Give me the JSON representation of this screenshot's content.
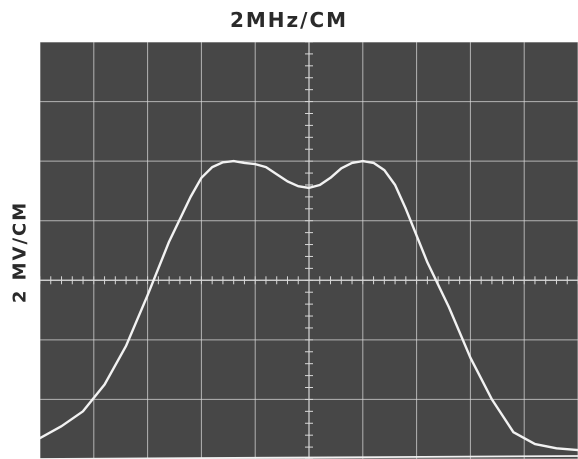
{
  "chart_data": {
    "type": "line",
    "title": "2MHz/CM",
    "xlabel": "",
    "ylabel": "2 MV/CM",
    "xlim": [
      -5,
      5
    ],
    "ylim": [
      -3,
      4
    ],
    "x_divisions": 10,
    "y_divisions": 7,
    "grid": true,
    "colors": {
      "screen": "#474747",
      "grid": "#d8d8d8",
      "trace": "#f2f2f2"
    },
    "series": [
      {
        "x": [
          -5.0,
          -4.6,
          -4.2,
          -3.8,
          -3.4,
          -3.0,
          -2.6,
          -2.2,
          -2.0,
          -1.8,
          -1.6,
          -1.4,
          -1.2,
          -1.0,
          -0.8,
          -0.6,
          -0.4,
          -0.2,
          0.0,
          0.2,
          0.4,
          0.6,
          0.8,
          1.0,
          1.2,
          1.4,
          1.6,
          1.8,
          2.0,
          2.2,
          2.6,
          3.0,
          3.4,
          3.8,
          4.2,
          4.6,
          5.0
        ],
        "y": [
          -2.65,
          -2.45,
          -2.2,
          -1.75,
          -1.1,
          -0.25,
          0.65,
          1.4,
          1.72,
          1.9,
          1.98,
          2.0,
          1.97,
          1.95,
          1.9,
          1.78,
          1.66,
          1.58,
          1.55,
          1.6,
          1.72,
          1.88,
          1.97,
          2.0,
          1.97,
          1.85,
          1.6,
          1.2,
          0.75,
          0.3,
          -0.45,
          -1.3,
          -2.0,
          -2.55,
          -2.75,
          -2.82,
          -2.85
        ]
      },
      {
        "x": [
          -5.0,
          5.0
        ],
        "y": [
          -3.0,
          -2.95
        ]
      }
    ]
  }
}
